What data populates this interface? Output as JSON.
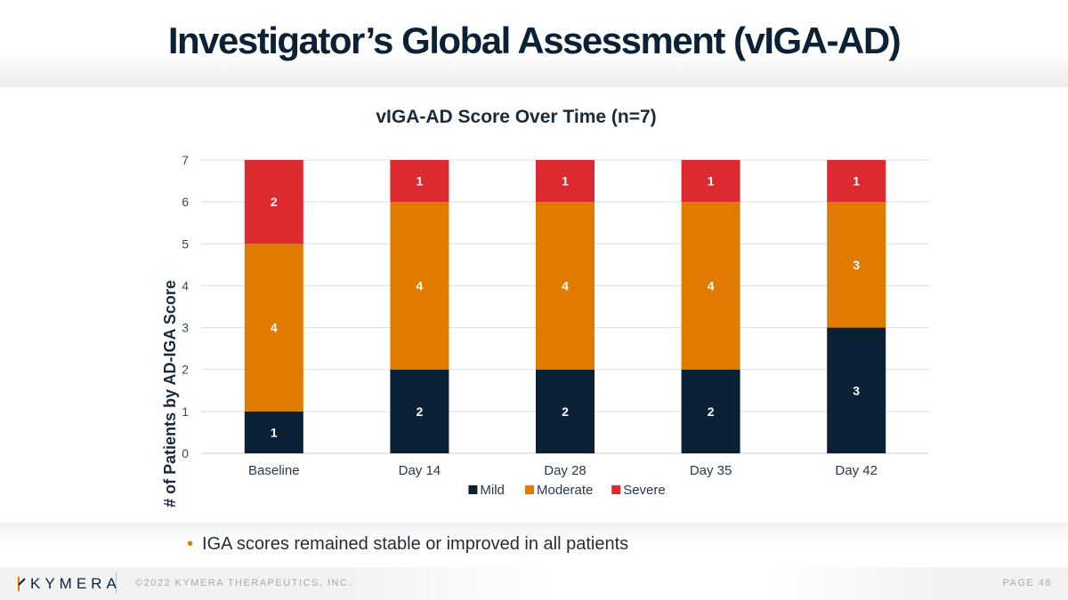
{
  "slide": {
    "title": "Investigator’s Global Assessment (vIGA-AD)",
    "bullet": "IGA scores remained stable or improved in all patients"
  },
  "footer": {
    "logo_text": "KYMERA",
    "copyright": "©2022 KYMERA THERAPEUTICS, INC.",
    "page": "PAGE 48"
  },
  "colors": {
    "mild": "#0b2236",
    "moderate": "#e07b00",
    "severe": "#dc2a30",
    "bullet": "#e07b00"
  },
  "chart_data": {
    "type": "bar",
    "stacked": true,
    "title": "vIGA-AD Score Over Time (n=7)",
    "xlabel": "",
    "ylabel": "# of Patients by AD-IGA Score",
    "categories": [
      "Baseline",
      "Day 14",
      "Day 28",
      "Day 35",
      "Day 42"
    ],
    "series": [
      {
        "name": "Mild",
        "values": [
          1,
          2,
          2,
          2,
          3
        ]
      },
      {
        "name": "Moderate",
        "values": [
          4,
          4,
          4,
          4,
          3
        ]
      },
      {
        "name": "Severe",
        "values": [
          2,
          1,
          1,
          1,
          1
        ]
      }
    ],
    "ylim": [
      0,
      7
    ],
    "yticks": [
      "0",
      "1",
      "2",
      "3",
      "4",
      "5",
      "6",
      "7"
    ],
    "grid": true,
    "legend": "bottom"
  }
}
